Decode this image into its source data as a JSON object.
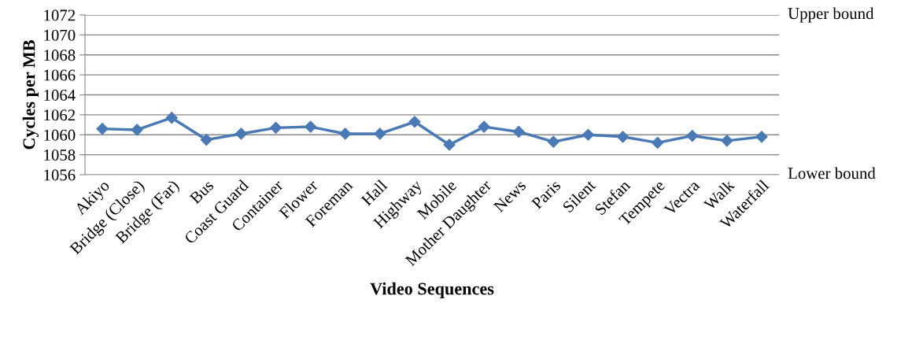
{
  "chart_data": {
    "type": "line",
    "xlabel": "Video Sequences",
    "ylabel": "Cycles per MB",
    "categories": [
      "Akiyo",
      "Bridge (Close)",
      "Bridge (Far)",
      "Bus",
      "Coast Guard",
      "Container",
      "Flower",
      "Foreman",
      "Hall",
      "Highway",
      "Mobile",
      "Mother Daughter",
      "News",
      "Paris",
      "Silent",
      "Stefan",
      "Tempete",
      "Vectra",
      "Walk",
      "Waterfall"
    ],
    "series": [
      {
        "color": "#4a7ab5",
        "values": [
          1060.6,
          1060.5,
          1061.7,
          1059.5,
          1060.1,
          1060.7,
          1060.8,
          1060.1,
          1060.1,
          1061.3,
          1059.0,
          1060.8,
          1060.3,
          1059.3,
          1060.0,
          1059.8,
          1059.2,
          1059.9,
          1059.4,
          1059.8
        ]
      }
    ],
    "ylim": [
      1056,
      1072
    ],
    "yticks": [
      1056,
      1058,
      1060,
      1062,
      1064,
      1066,
      1068,
      1070,
      1072
    ],
    "grid": "y",
    "marker": "diamond",
    "line_style": "solid",
    "annotations": [
      "Upper bound",
      "Lower bound"
    ]
  }
}
